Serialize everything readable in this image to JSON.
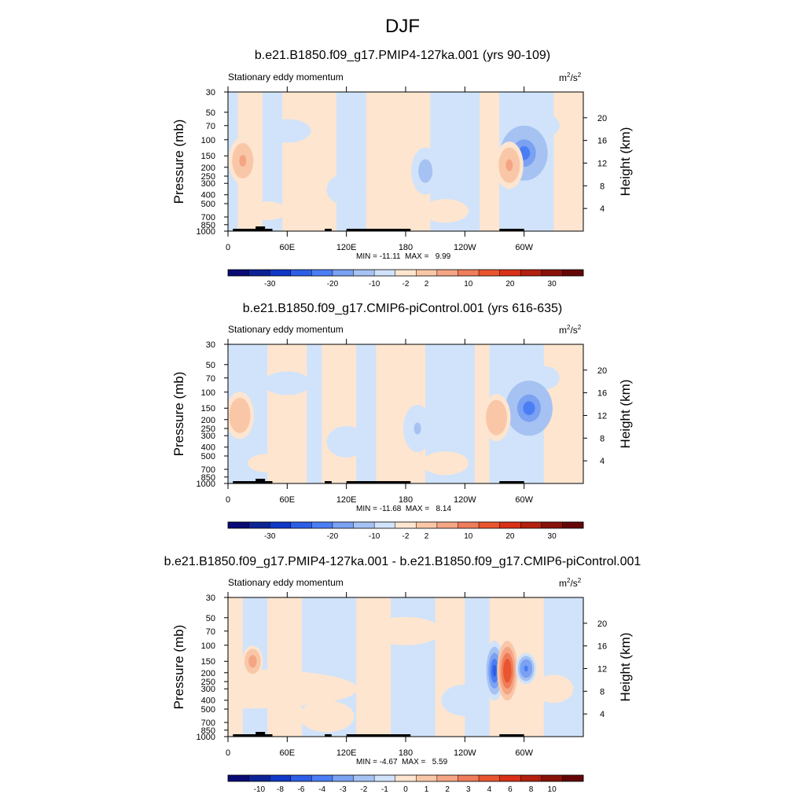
{
  "main_title": "DJF",
  "colorbars": {
    "full": {
      "colors": [
        "#0a0a75",
        "#0d2394",
        "#1238c7",
        "#2d5fe6",
        "#4b7ef5",
        "#7aa1f2",
        "#a6c2f2",
        "#d0e3fa",
        "#fde5d0",
        "#f9c7a7",
        "#f5a584",
        "#ef7c5a",
        "#e9552f",
        "#d93117",
        "#b3200e",
        "#881208",
        "#650606"
      ],
      "labels": [
        "-30",
        "-20",
        "-10",
        "-2",
        "2",
        "10",
        "20",
        "30"
      ]
    },
    "diff": {
      "colors": [
        "#0a0a75",
        "#0d2394",
        "#1238c7",
        "#2d5fe6",
        "#4b7ef5",
        "#7aa1f2",
        "#a6c2f2",
        "#d0e3fa",
        "#fde5d0",
        "#f9c7a7",
        "#f5a584",
        "#ef7c5a",
        "#e9552f",
        "#d93117",
        "#b3200e",
        "#881208",
        "#650606"
      ],
      "labels": [
        "-10",
        "-8",
        "-6",
        "-4",
        "-3",
        "-2",
        "-1",
        "0",
        "1",
        "2",
        "3",
        "4",
        "6",
        "8",
        "10"
      ]
    }
  },
  "panels": [
    {
      "title": "b.e21.B1850.f09_g17.PMIP4-127ka.001 (yrs 90-109)",
      "subtitle": "Stationary eddy momentum",
      "units": "m",
      "units_sup": "2",
      "units_tail": "/s",
      "units_sup2": "2",
      "minmax": "MIN = -11.11  MAX =   9.99",
      "colorbar": "full"
    },
    {
      "title": "b.e21.B1850.f09_g17.CMIP6-piControl.001 (yrs 616-635)",
      "subtitle": "Stationary eddy momentum",
      "units": "m",
      "units_sup": "2",
      "units_tail": "/s",
      "units_sup2": "2",
      "minmax": "MIN = -11.68  MAX =   8.14",
      "colorbar": "full"
    },
    {
      "title": "b.e21.B1850.f09_g17.PMIP4-127ka.001 - b.e21.B1850.f09_g17.CMIP6-piControl.001",
      "subtitle": "Stationary eddy momentum",
      "units": "m",
      "units_sup": "2",
      "units_tail": "/s",
      "units_sup2": "2",
      "minmax": "MIN = -4.67  MAX =   5.59",
      "colorbar": "diff"
    }
  ],
  "chart_data": [
    {
      "type": "heatmap",
      "title": "b.e21.B1850.f09_g17.PMIP4-127ka.001 (yrs 90-109)",
      "ylabel": "Pressure (mb)",
      "y2label": "Height (km)",
      "xticks": [
        "0",
        "60E",
        "120E",
        "180",
        "120W",
        "60W"
      ],
      "yticks": [
        "30",
        "50",
        "70",
        "100",
        "150",
        "200",
        "250",
        "300",
        "400",
        "500",
        "700",
        "850",
        "1000"
      ],
      "y2ticks": [
        "20",
        "16",
        "12",
        "8",
        "4"
      ],
      "min": -11.11,
      "max": 9.99,
      "features": [
        {
          "lon": 15,
          "p": 170,
          "value": 8
        },
        {
          "lon": 300,
          "p": 140,
          "value": -11
        },
        {
          "lon": 285,
          "p": 190,
          "value": 7
        },
        {
          "lon": 200,
          "p": 220,
          "value": -3
        }
      ]
    },
    {
      "type": "heatmap",
      "title": "b.e21.B1850.f09_g17.CMIP6-piControl.001 (yrs 616-635)",
      "ylabel": "Pressure (mb)",
      "y2label": "Height (km)",
      "xticks": [
        "0",
        "60E",
        "120E",
        "180",
        "120W",
        "60W"
      ],
      "yticks": [
        "30",
        "50",
        "70",
        "100",
        "150",
        "200",
        "250",
        "300",
        "400",
        "500",
        "700",
        "850",
        "1000"
      ],
      "y2ticks": [
        "20",
        "16",
        "12",
        "8",
        "4"
      ],
      "min": -11.68,
      "max": 8.14,
      "features": [
        {
          "lon": 12,
          "p": 180,
          "value": 6
        },
        {
          "lon": 305,
          "p": 150,
          "value": -11
        },
        {
          "lon": 272,
          "p": 190,
          "value": 6
        },
        {
          "lon": 192,
          "p": 250,
          "value": -2
        }
      ]
    },
    {
      "type": "heatmap",
      "title": "b.e21.B1850.f09_g17.PMIP4-127ka.001 - b.e21.B1850.f09_g17.CMIP6-piControl.001",
      "ylabel": "Pressure (mb)",
      "y2label": "Height (km)",
      "xticks": [
        "0",
        "60E",
        "120E",
        "180",
        "120W",
        "60W"
      ],
      "yticks": [
        "30",
        "50",
        "70",
        "100",
        "150",
        "200",
        "250",
        "300",
        "400",
        "500",
        "700",
        "850",
        "1000"
      ],
      "y2ticks": [
        "20",
        "16",
        "12",
        "8",
        "4"
      ],
      "min": -4.67,
      "max": 5.59,
      "features": [
        {
          "lon": 270,
          "p": 190,
          "value": -4.6
        },
        {
          "lon": 283,
          "p": 190,
          "value": 5.5
        },
        {
          "lon": 302,
          "p": 180,
          "value": -3.5
        },
        {
          "lon": 25,
          "p": 150,
          "value": 3
        }
      ]
    }
  ]
}
